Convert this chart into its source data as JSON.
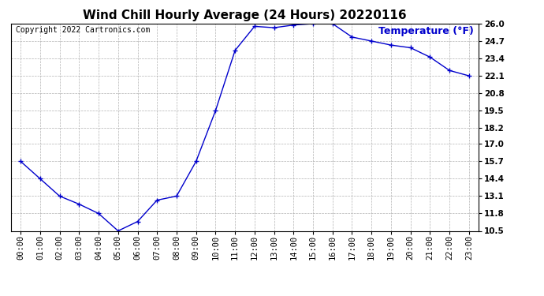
{
  "title": "Wind Chill Hourly Average (24 Hours) 20220116",
  "temp_label": "Temperature (°F)",
  "copyright": "Copyright 2022 Cartronics.com",
  "hours": [
    "00:00",
    "01:00",
    "02:00",
    "03:00",
    "04:00",
    "05:00",
    "06:00",
    "07:00",
    "08:00",
    "09:00",
    "10:00",
    "11:00",
    "12:00",
    "13:00",
    "14:00",
    "15:00",
    "16:00",
    "17:00",
    "18:00",
    "19:00",
    "20:00",
    "21:00",
    "22:00",
    "23:00"
  ],
  "values": [
    15.7,
    14.4,
    13.1,
    12.5,
    11.8,
    10.5,
    11.2,
    12.8,
    13.1,
    15.7,
    19.5,
    24.0,
    25.8,
    25.7,
    25.9,
    26.0,
    26.0,
    25.0,
    24.7,
    24.4,
    24.2,
    23.5,
    22.5,
    22.1
  ],
  "line_color": "#0000CC",
  "marker": "+",
  "marker_size": 4,
  "marker_edge_width": 1.0,
  "line_width": 1.0,
  "ylim_min": 10.5,
  "ylim_max": 26.0,
  "yticks": [
    10.5,
    11.8,
    13.1,
    14.4,
    15.7,
    17.0,
    18.2,
    19.5,
    20.8,
    22.1,
    23.4,
    24.7,
    26.0
  ],
  "background_color": "#ffffff",
  "grid_color": "#aaaaaa",
  "title_color": "#000000",
  "temp_label_color": "#0000CC",
  "copyright_color": "#000000",
  "title_fontsize": 11,
  "temp_label_fontsize": 9,
  "copyright_fontsize": 7,
  "tick_fontsize": 7.5,
  "figwidth": 6.9,
  "figheight": 3.75,
  "dpi": 100
}
